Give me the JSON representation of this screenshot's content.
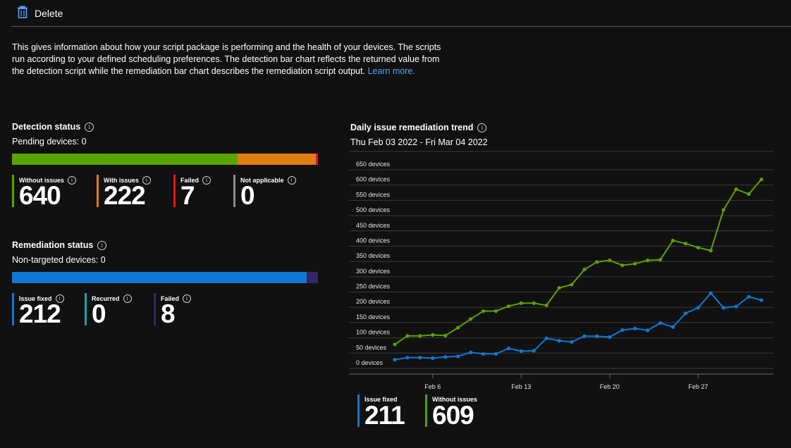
{
  "toolbar": {
    "delete_label": "Delete"
  },
  "description": {
    "text": "This gives information about how your script package is performing and the health of your devices. The scripts run according to your defined scheduling preferences. The detection bar chart reflects the returned value from the detection script while the remediation bar chart describes the remediation script output.",
    "link": "Learn more."
  },
  "detection": {
    "title": "Detection status",
    "pending": "Pending devices: 0",
    "metrics": [
      {
        "label": "Without issues",
        "value": "640",
        "color": "#57a300"
      },
      {
        "label": "With issues",
        "value": "222",
        "color": "#e07d10"
      },
      {
        "label": "Failed",
        "value": "7",
        "color": "#e81123"
      },
      {
        "label": "Not applicable",
        "value": "0",
        "color": "#8a8a8a"
      }
    ]
  },
  "remediation": {
    "title": "Remediation status",
    "non_targeted": "Non-targeted devices: 0",
    "metrics": [
      {
        "label": "Issue fixed",
        "value": "212",
        "color": "#0f78d4"
      },
      {
        "label": "Recurred",
        "value": "0",
        "color": "#1ba1a9"
      },
      {
        "label": "Failed",
        "value": "8",
        "color": "#3a2467"
      }
    ]
  },
  "trend": {
    "title": "Daily issue remediation trend",
    "range": "Thu Feb 03 2022 - Fri Mar 04 2022",
    "legend": [
      {
        "label": "Issue fixed",
        "value": "211",
        "color": "#0f78d4"
      },
      {
        "label": "Without issues",
        "value": "609",
        "color": "#57a300"
      }
    ]
  },
  "chart_data": {
    "type": "line",
    "title": "Daily issue remediation trend",
    "y_unit": "devices",
    "ylim": [
      0,
      650
    ],
    "y_ticks": [
      0,
      50,
      100,
      150,
      200,
      250,
      300,
      350,
      400,
      450,
      500,
      550,
      600,
      650
    ],
    "y_tick_labels": [
      "0 devices",
      "50 devices",
      "100 devices",
      "150 devices",
      "200 devices",
      "250 devices",
      "300 devices",
      "350 devices",
      "400 devices",
      "450 devices",
      "500 devices",
      "550 devices",
      "600 devices",
      "650 devices"
    ],
    "x": [
      "Feb 3",
      "Feb 4",
      "Feb 5",
      "Feb 6",
      "Feb 7",
      "Feb 8",
      "Feb 9",
      "Feb 10",
      "Feb 11",
      "Feb 12",
      "Feb 13",
      "Feb 14",
      "Feb 15",
      "Feb 16",
      "Feb 17",
      "Feb 18",
      "Feb 19",
      "Feb 20",
      "Feb 21",
      "Feb 22",
      "Feb 23",
      "Feb 24",
      "Feb 25",
      "Feb 26",
      "Feb 27",
      "Feb 28",
      "Mar 1",
      "Mar 2",
      "Mar 3",
      "Mar 4"
    ],
    "x_tick_labels": [
      "Feb 6",
      "Feb 13",
      "Feb 20",
      "Feb 27"
    ],
    "x_tick_index": [
      3,
      10,
      17,
      24
    ],
    "series": [
      {
        "name": "Without issues",
        "color": "#57a300",
        "values": [
          60,
          88,
          88,
          91,
          89,
          115,
          143,
          169,
          169,
          185,
          195,
          195,
          188,
          245,
          256,
          305,
          330,
          335,
          319,
          324,
          335,
          337,
          400,
          390,
          377,
          367,
          500,
          568,
          552,
          600
        ]
      },
      {
        "name": "Issue fixed",
        "color": "#0f78d4",
        "values": [
          10,
          17,
          17,
          15,
          19,
          21,
          34,
          29,
          29,
          47,
          38,
          39,
          80,
          72,
          68,
          87,
          87,
          84,
          107,
          112,
          106,
          130,
          117,
          162,
          180,
          228,
          180,
          184,
          216,
          205
        ]
      }
    ],
    "grid": true
  }
}
